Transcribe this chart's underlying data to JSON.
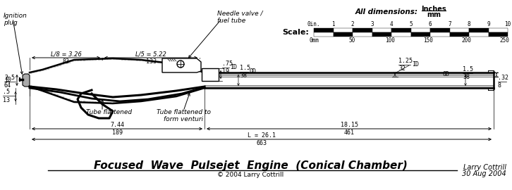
{
  "title": "Focused  Wave  Pulsejet  Engine  (Conical Chamber)",
  "copyright": "© 2004 Larry Cottrill",
  "author": "Larry Cottrill",
  "date": "30 Aug 2004",
  "fig_w": 7.26,
  "fig_h": 2.7,
  "dpi": 100
}
